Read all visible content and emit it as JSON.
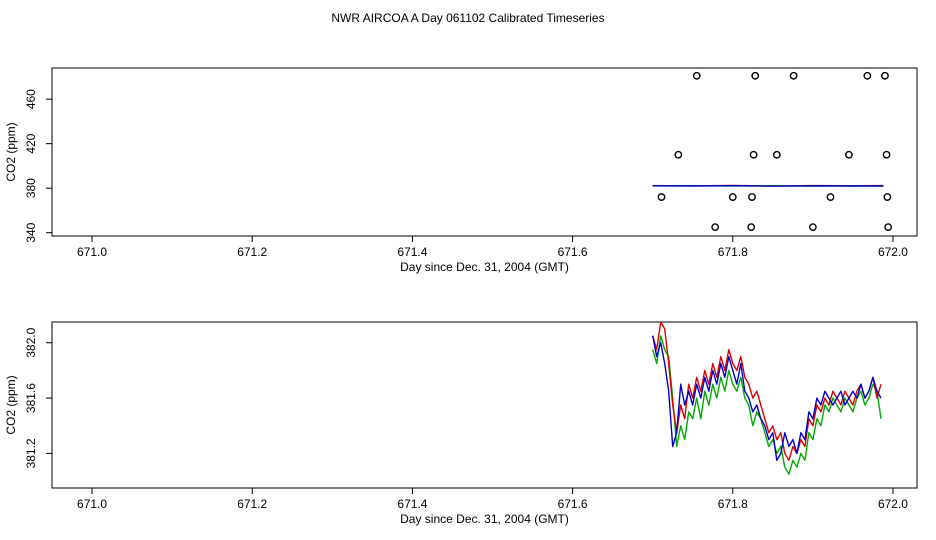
{
  "title": "NWR AIRCOA A  Day 061102  Calibrated Timeseries",
  "chart_data": [
    {
      "type": "scatter",
      "xlabel": "Day since Dec. 31, 2004 (GMT)",
      "ylabel": "CO2 (ppm)",
      "xlim": [
        670.95,
        672.03
      ],
      "ylim": [
        337,
        488
      ],
      "xticks": [
        "671.0",
        "671.2",
        "671.4",
        "671.6",
        "671.8",
        "672.0"
      ],
      "xtick_values": [
        671.0,
        671.2,
        671.4,
        671.6,
        671.8,
        672.0
      ],
      "yticks": [
        "340",
        "380",
        "420",
        "460"
      ],
      "ytick_values": [
        340,
        380,
        420,
        460
      ],
      "grid": false,
      "points": {
        "x": [
          671.755,
          671.828,
          671.876,
          671.968,
          671.99,
          671.732,
          671.826,
          671.855,
          671.945,
          671.992,
          671.711,
          671.8,
          671.824,
          671.922,
          671.993,
          671.778,
          671.823,
          671.9,
          671.994
        ],
        "y": [
          481,
          481,
          481,
          481,
          481,
          410,
          410,
          410,
          410,
          410,
          372,
          372,
          372,
          372,
          372,
          345,
          345,
          345,
          345
        ]
      },
      "series": [
        {
          "color": "#dd0000",
          "x": [
            671.7,
            671.75,
            671.8,
            671.85,
            671.9,
            671.95,
            671.988
          ],
          "y": [
            382.3,
            382.1,
            382.4,
            382.0,
            382.3,
            382.2,
            382.3
          ]
        },
        {
          "color": "#00aa00",
          "x": [
            671.7,
            671.75,
            671.8,
            671.85,
            671.9,
            671.95,
            671.988
          ],
          "y": [
            382.0,
            382.2,
            381.9,
            382.2,
            381.8,
            382.1,
            381.8
          ]
        },
        {
          "color": "#0000cc",
          "x": [
            671.7,
            671.75,
            671.8,
            671.85,
            671.9,
            671.95,
            671.988
          ],
          "y": [
            382.1,
            381.9,
            382.2,
            381.8,
            382.1,
            381.9,
            382.0
          ]
        }
      ]
    },
    {
      "type": "line",
      "xlabel": "Day since Dec. 31, 2004 (GMT)",
      "ylabel": "CO2 (ppm)",
      "xlim": [
        670.95,
        672.03
      ],
      "ylim": [
        380.95,
        382.15
      ],
      "xticks": [
        "671.0",
        "671.2",
        "671.4",
        "671.6",
        "671.8",
        "672.0"
      ],
      "xtick_values": [
        671.0,
        671.2,
        671.4,
        671.6,
        671.8,
        672.0
      ],
      "yticks": [
        "381.2",
        "381.6",
        "382.0"
      ],
      "ytick_values": [
        381.2,
        381.6,
        382.0
      ],
      "grid": false,
      "series": [
        {
          "color": "#00aa00",
          "x": [
            671.7,
            671.705,
            671.71,
            671.715,
            671.72,
            671.725,
            671.73,
            671.735,
            671.74,
            671.745,
            671.75,
            671.755,
            671.76,
            671.765,
            671.77,
            671.775,
            671.78,
            671.785,
            671.79,
            671.795,
            671.8,
            671.805,
            671.81,
            671.815,
            671.82,
            671.825,
            671.83,
            671.835,
            671.84,
            671.845,
            671.85,
            671.855,
            671.86,
            671.865,
            671.87,
            671.875,
            671.88,
            671.885,
            671.89,
            671.895,
            671.9,
            671.905,
            671.91,
            671.915,
            671.92,
            671.925,
            671.93,
            671.935,
            671.94,
            671.945,
            671.95,
            671.955,
            671.96,
            671.965,
            671.97,
            671.975,
            671.98,
            671.985
          ],
          "y": [
            381.95,
            381.85,
            382.05,
            381.95,
            381.9,
            381.6,
            381.25,
            381.4,
            381.3,
            381.5,
            381.45,
            381.6,
            381.45,
            381.65,
            381.55,
            381.7,
            381.6,
            381.75,
            381.65,
            381.8,
            381.7,
            381.65,
            381.75,
            381.6,
            381.55,
            381.4,
            381.5,
            381.45,
            381.35,
            381.25,
            381.3,
            381.2,
            381.25,
            381.1,
            381.05,
            381.15,
            381.1,
            381.2,
            381.15,
            381.35,
            381.3,
            381.45,
            381.4,
            381.55,
            381.5,
            381.6,
            381.55,
            381.5,
            381.6,
            381.55,
            381.5,
            381.6,
            381.65,
            381.55,
            381.6,
            381.7,
            381.65,
            381.45
          ]
        },
        {
          "color": "#dd0000",
          "x": [
            671.7,
            671.705,
            671.71,
            671.715,
            671.72,
            671.725,
            671.73,
            671.735,
            671.74,
            671.745,
            671.75,
            671.755,
            671.76,
            671.765,
            671.77,
            671.775,
            671.78,
            671.785,
            671.79,
            671.795,
            671.8,
            671.805,
            671.81,
            671.815,
            671.82,
            671.825,
            671.83,
            671.835,
            671.84,
            671.845,
            671.85,
            671.855,
            671.86,
            671.865,
            671.87,
            671.875,
            671.88,
            671.885,
            671.89,
            671.895,
            671.9,
            671.905,
            671.91,
            671.915,
            671.92,
            671.925,
            671.93,
            671.935,
            671.94,
            671.945,
            671.95,
            671.955,
            671.96,
            671.965,
            671.97,
            671.975,
            671.98,
            671.985
          ],
          "y": [
            382.05,
            381.95,
            382.15,
            382.1,
            381.85,
            381.55,
            381.35,
            381.55,
            381.45,
            381.7,
            381.6,
            381.75,
            381.65,
            381.8,
            381.7,
            381.85,
            381.75,
            381.9,
            381.8,
            381.95,
            381.85,
            381.8,
            381.9,
            381.75,
            381.7,
            381.6,
            381.65,
            381.55,
            381.45,
            381.35,
            381.4,
            381.3,
            381.35,
            381.2,
            381.15,
            381.25,
            381.2,
            381.3,
            381.25,
            381.45,
            381.4,
            381.55,
            381.5,
            381.6,
            381.55,
            381.65,
            381.6,
            381.55,
            381.65,
            381.6,
            381.55,
            381.65,
            381.7,
            381.6,
            381.65,
            381.75,
            381.6,
            381.7
          ]
        },
        {
          "color": "#0000cc",
          "x": [
            671.7,
            671.705,
            671.71,
            671.715,
            671.72,
            671.725,
            671.73,
            671.735,
            671.74,
            671.745,
            671.75,
            671.755,
            671.76,
            671.765,
            671.77,
            671.775,
            671.78,
            671.785,
            671.79,
            671.795,
            671.8,
            671.805,
            671.81,
            671.815,
            671.82,
            671.825,
            671.83,
            671.835,
            671.84,
            671.845,
            671.85,
            671.855,
            671.86,
            671.865,
            671.87,
            671.875,
            671.88,
            671.885,
            671.89,
            671.895,
            671.9,
            671.905,
            671.91,
            671.915,
            671.92,
            671.925,
            671.93,
            671.935,
            671.94,
            671.945,
            671.95,
            671.955,
            671.96,
            671.965,
            671.97,
            671.975,
            671.98,
            671.985
          ],
          "y": [
            382.05,
            381.9,
            382.0,
            381.85,
            381.65,
            381.25,
            381.35,
            381.7,
            381.55,
            381.65,
            381.55,
            381.7,
            381.6,
            381.75,
            381.65,
            381.8,
            381.7,
            381.85,
            381.75,
            381.9,
            381.8,
            381.7,
            381.85,
            381.65,
            381.6,
            381.5,
            381.55,
            381.45,
            381.4,
            381.3,
            381.35,
            381.15,
            381.2,
            381.35,
            381.25,
            381.3,
            381.2,
            381.35,
            381.3,
            381.5,
            381.45,
            381.6,
            381.55,
            381.65,
            381.6,
            381.55,
            381.6,
            381.65,
            381.55,
            381.6,
            381.65,
            381.6,
            381.7,
            381.6,
            381.65,
            381.75,
            381.65,
            381.6
          ]
        }
      ]
    }
  ]
}
